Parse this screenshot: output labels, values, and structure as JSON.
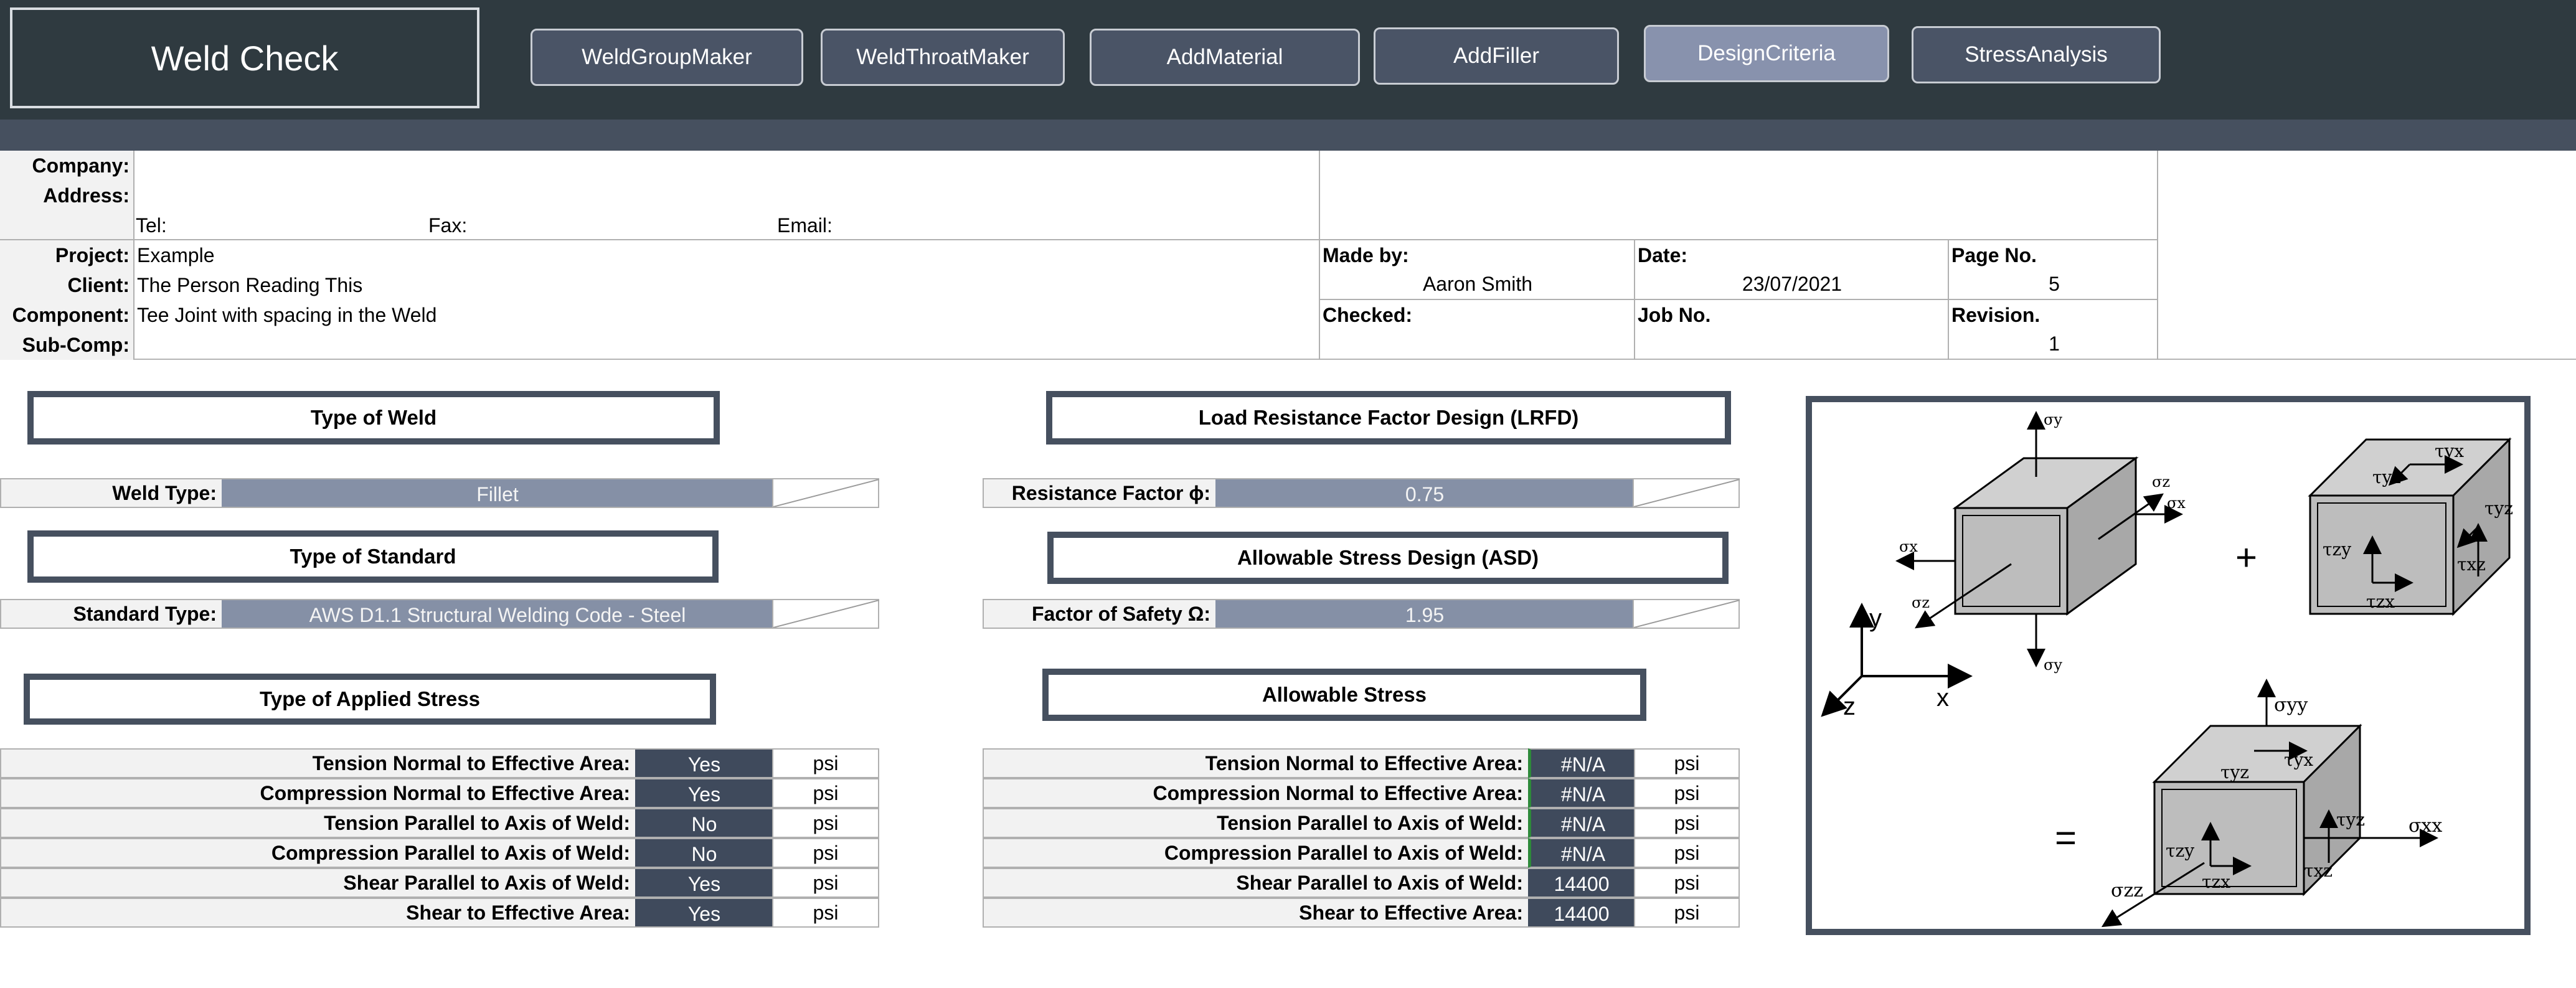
{
  "header": {
    "title": "Weld Check",
    "nav": [
      {
        "label": "WeldGroupMaker"
      },
      {
        "label": "WeldThroatMaker"
      },
      {
        "label": "AddMaterial"
      },
      {
        "label": "AddFiller"
      },
      {
        "label": "DesignCriteria"
      },
      {
        "label": "StressAnalysis"
      }
    ]
  },
  "info": {
    "company_label": "Company:",
    "address_label": "Address:",
    "tel_label": "Tel:",
    "fax_label": "Fax:",
    "email_label": "Email:",
    "project_label": "Project:",
    "project": "Example",
    "client_label": "Client:",
    "client": "The Person Reading This",
    "component_label": "Component:",
    "component": "Tee Joint with spacing in the Weld",
    "subcomp_label": "Sub-Comp:",
    "made_by_label": "Made by:",
    "made_by": "Aaron Smith",
    "date_label": "Date:",
    "date": "23/07/2021",
    "page_label": "Page No.",
    "page": "5",
    "checked_label": "Checked:",
    "job_label": "Job No.",
    "revision_label": "Revision.",
    "revision": "1"
  },
  "weld_type": {
    "section": "Type of Weld",
    "label": "Weld Type:",
    "value": "Fillet"
  },
  "standard": {
    "section": "Type of Standard",
    "label": "Standard Type:",
    "value": "AWS D1.1 Structural Welding Code - Steel"
  },
  "applied": {
    "section": "Type of Applied Stress",
    "rows": [
      {
        "label": "Tension Normal to Effective Area:",
        "value": "Yes",
        "unit": "psi"
      },
      {
        "label": "Compression Normal to Effective Area:",
        "value": "Yes",
        "unit": "psi"
      },
      {
        "label": "Tension Parallel to Axis of Weld:",
        "value": "No",
        "unit": "psi"
      },
      {
        "label": "Compression Parallel to Axis of Weld:",
        "value": "No",
        "unit": "psi"
      },
      {
        "label": "Shear Parallel to Axis of Weld:",
        "value": "Yes",
        "unit": "psi"
      },
      {
        "label": "Shear to Effective Area:",
        "value": "Yes",
        "unit": "psi"
      }
    ]
  },
  "lrfd": {
    "section": "Load Resistance Factor Design (LRFD)",
    "label": "Resistance Factor ϕ:",
    "value": "0.75"
  },
  "asd": {
    "section": "Allowable Stress Design (ASD)",
    "label": "Factor of Safety Ω:",
    "value": "1.95"
  },
  "allowable": {
    "section": "Allowable Stress",
    "rows": [
      {
        "label": "Tension Normal to Effective Area:",
        "value": "#N/A",
        "unit": "psi"
      },
      {
        "label": "Compression Normal to Effective Area:",
        "value": "#N/A",
        "unit": "psi"
      },
      {
        "label": "Tension Parallel to Axis of Weld:",
        "value": "#N/A",
        "unit": "psi"
      },
      {
        "label": "Compression Parallel to Axis of Weld:",
        "value": "#N/A",
        "unit": "psi"
      },
      {
        "label": "Shear Parallel to Axis of Weld:",
        "value": "14400",
        "unit": "psi"
      },
      {
        "label": "Shear to Effective Area:",
        "value": "14400",
        "unit": "psi"
      }
    ]
  },
  "figure": {
    "sigma_y": "σy",
    "sigma_z": "σz",
    "sigma_x": "σx",
    "tau_yx": "τyx",
    "tau_yz": "τyz",
    "tau_zy": "τzy",
    "tau_zx": "τzx",
    "tau_xz": "τxz",
    "sigma_yy": "σyy",
    "sigma_xx": "σxx",
    "sigma_zz": "σzz",
    "axis_y": "y",
    "axis_z": "z",
    "axis_x": "x",
    "plus": "+",
    "equals": "="
  },
  "colors": {
    "header_bg": "#2f3a40",
    "subbar_bg": "#46505f",
    "button_bg": "#4a5466",
    "active_button_bg": "#8892ad",
    "input_bg": "#8590a6",
    "dark_input_bg": "#3f4a5c"
  }
}
